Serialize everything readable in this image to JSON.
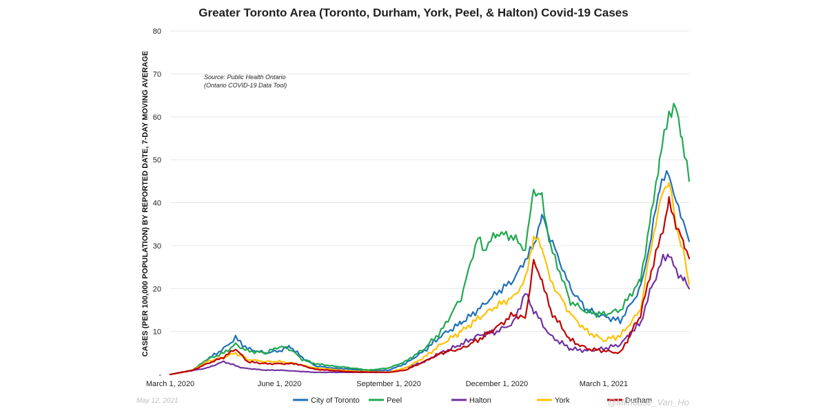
{
  "chart_data": {
    "type": "line",
    "title": "Greater Toronto Area (Toronto, Durham, York, Peel, & Halton) Covid-19 Cases",
    "ylabel": "CASES (PER 100,000 POPULATION) BY REPORTED DATE, 7-DAY MOVING AVERAGE",
    "xlabel": "",
    "ylim": [
      0,
      80
    ],
    "yticks": [
      0,
      10,
      20,
      30,
      40,
      50,
      60,
      70,
      80
    ],
    "ytick_labels": [
      "-",
      "10",
      "20",
      "30",
      "40",
      "50",
      "60",
      "70",
      "80"
    ],
    "xlim": [
      "2020-03-01",
      "2021-05-12"
    ],
    "xticks": [
      {
        "date": "2020-03-01",
        "label": "March 1, 2020"
      },
      {
        "date": "2020-06-01",
        "label": "June 1, 2020"
      },
      {
        "date": "2020-09-01",
        "label": "September 1, 2020"
      },
      {
        "date": "2020-12-01",
        "label": "December 1, 2020"
      },
      {
        "date": "2021-03-01",
        "label": "March 1, 2021"
      }
    ],
    "grid": true,
    "legend_position": "bottom",
    "annotation": [
      "Source: Public Health Ontario",
      "(Ontario COVID-19 Data Tool)"
    ],
    "series": [
      {
        "name": "City of Toronto",
        "color": "#1f6fb7",
        "x": [
          "2020-03-01",
          "2020-03-20",
          "2020-04-01",
          "2020-04-15",
          "2020-04-25",
          "2020-05-05",
          "2020-05-20",
          "2020-06-01",
          "2020-06-10",
          "2020-06-20",
          "2020-07-01",
          "2020-07-15",
          "2020-08-01",
          "2020-08-15",
          "2020-09-01",
          "2020-09-15",
          "2020-10-01",
          "2020-10-15",
          "2020-11-01",
          "2020-11-15",
          "2020-12-01",
          "2020-12-15",
          "2021-01-01",
          "2021-01-08",
          "2021-01-15",
          "2021-02-01",
          "2021-02-15",
          "2021-03-01",
          "2021-03-15",
          "2021-04-01",
          "2021-04-10",
          "2021-04-17",
          "2021-04-25",
          "2021-05-01",
          "2021-05-08",
          "2021-05-12"
        ],
        "values": [
          0,
          1,
          3.5,
          6,
          8.5,
          6,
          5,
          5.5,
          6.5,
          4,
          2,
          1.5,
          1.2,
          0.8,
          1,
          2.5,
          5.5,
          9,
          12,
          15,
          19,
          22,
          30,
          37,
          32,
          20,
          15,
          13.5,
          12.5,
          20,
          32,
          44,
          47,
          40,
          35,
          31
        ]
      },
      {
        "name": "Peel",
        "color": "#1fa84f",
        "x": [
          "2020-03-01",
          "2020-03-20",
          "2020-04-01",
          "2020-04-15",
          "2020-04-25",
          "2020-05-05",
          "2020-05-20",
          "2020-06-01",
          "2020-06-10",
          "2020-06-20",
          "2020-07-01",
          "2020-07-15",
          "2020-08-01",
          "2020-08-15",
          "2020-09-01",
          "2020-09-15",
          "2020-10-01",
          "2020-10-15",
          "2020-11-01",
          "2020-11-15",
          "2020-11-20",
          "2020-12-01",
          "2020-12-15",
          "2020-12-25",
          "2021-01-01",
          "2021-01-08",
          "2021-01-15",
          "2021-02-01",
          "2021-02-15",
          "2021-03-01",
          "2021-03-15",
          "2021-04-01",
          "2021-04-10",
          "2021-04-17",
          "2021-04-25",
          "2021-05-01",
          "2021-05-06",
          "2021-05-12"
        ],
        "values": [
          0,
          1,
          3.5,
          5,
          7,
          5.5,
          5,
          6.5,
          6,
          3.5,
          2.5,
          2,
          1.5,
          1,
          1.5,
          3,
          6,
          10,
          18,
          32,
          29,
          33,
          32,
          29,
          43,
          41,
          30,
          17,
          14.5,
          14,
          15,
          22,
          37,
          50,
          61,
          62,
          55,
          45
        ]
      },
      {
        "name": "Halton",
        "color": "#7030a0",
        "x": [
          "2020-03-01",
          "2020-04-01",
          "2020-04-15",
          "2020-05-01",
          "2020-05-20",
          "2020-06-01",
          "2020-07-01",
          "2020-08-01",
          "2020-09-01",
          "2020-09-15",
          "2020-10-01",
          "2020-10-15",
          "2020-11-01",
          "2020-11-15",
          "2020-12-01",
          "2020-12-15",
          "2020-12-25",
          "2021-01-01",
          "2021-01-15",
          "2021-02-01",
          "2021-02-15",
          "2021-03-01",
          "2021-03-15",
          "2021-04-01",
          "2021-04-10",
          "2021-04-20",
          "2021-04-25",
          "2021-05-01",
          "2021-05-08",
          "2021-05-12"
        ],
        "values": [
          0,
          1.5,
          3,
          1.5,
          1,
          1,
          0.5,
          0.5,
          0.5,
          1.5,
          3,
          5,
          7,
          9,
          10,
          12,
          19,
          15,
          9,
          6,
          5.5,
          6,
          7,
          12,
          20,
          27,
          28,
          24,
          22,
          20
        ]
      },
      {
        "name": "York",
        "color": "#ffc000",
        "x": [
          "2020-03-01",
          "2020-03-20",
          "2020-04-01",
          "2020-04-15",
          "2020-04-25",
          "2020-05-05",
          "2020-05-20",
          "2020-06-01",
          "2020-06-15",
          "2020-07-01",
          "2020-08-01",
          "2020-09-01",
          "2020-09-15",
          "2020-10-01",
          "2020-10-15",
          "2020-11-01",
          "2020-11-15",
          "2020-12-01",
          "2020-12-15",
          "2020-12-25",
          "2021-01-01",
          "2021-01-08",
          "2021-01-15",
          "2021-02-01",
          "2021-02-15",
          "2021-03-01",
          "2021-03-15",
          "2021-04-01",
          "2021-04-10",
          "2021-04-20",
          "2021-04-25",
          "2021-05-01",
          "2021-05-08",
          "2021-05-12"
        ],
        "values": [
          0,
          1,
          3,
          4,
          5,
          3.5,
          3,
          3,
          2.5,
          1.5,
          0.8,
          0.5,
          1.5,
          4,
          7,
          10,
          13,
          16,
          18,
          22,
          32,
          30,
          22,
          14,
          10,
          8,
          9,
          15,
          30,
          43,
          45,
          35,
          27,
          21
        ]
      },
      {
        "name": "Durham",
        "color": "#c00000",
        "x": [
          "2020-03-01",
          "2020-03-20",
          "2020-04-01",
          "2020-04-15",
          "2020-04-25",
          "2020-05-05",
          "2020-05-20",
          "2020-06-01",
          "2020-06-15",
          "2020-07-01",
          "2020-08-01",
          "2020-09-01",
          "2020-09-15",
          "2020-10-01",
          "2020-10-15",
          "2020-11-01",
          "2020-11-15",
          "2020-12-01",
          "2020-12-15",
          "2020-12-25",
          "2021-01-01",
          "2021-01-08",
          "2021-01-15",
          "2021-02-01",
          "2021-02-15",
          "2021-03-01",
          "2021-03-15",
          "2021-04-01",
          "2021-04-10",
          "2021-04-20",
          "2021-04-25",
          "2021-05-01",
          "2021-05-08",
          "2021-05-12"
        ],
        "values": [
          0,
          1,
          2.5,
          4,
          6,
          3,
          2.5,
          2.5,
          2.5,
          1.2,
          0.6,
          0.5,
          1,
          3,
          5,
          6,
          8,
          11,
          14,
          13,
          26,
          22,
          15,
          8,
          6,
          5.5,
          5,
          14,
          24,
          34,
          40,
          35,
          30,
          27
        ]
      }
    ]
  },
  "footer": {
    "date_stamp": "May 12, 2021",
    "handle": "@Milhouse_Van_Ho"
  }
}
